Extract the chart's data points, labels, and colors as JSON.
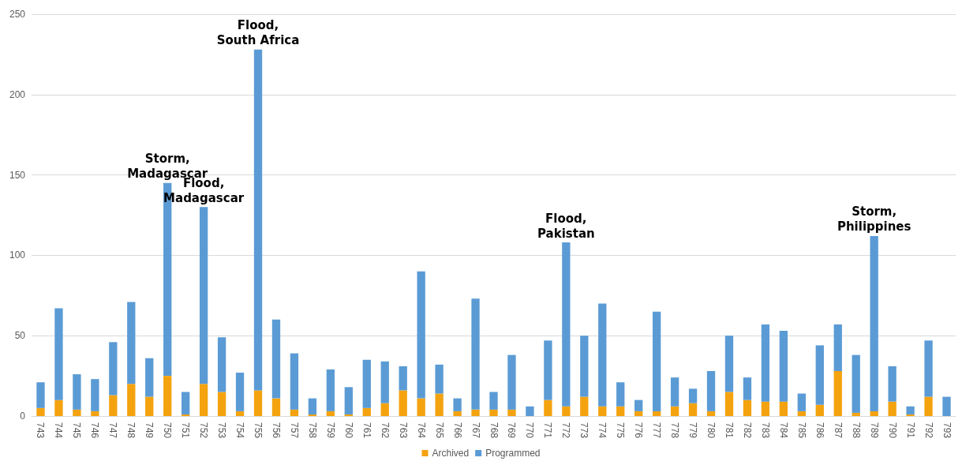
{
  "chart_data": {
    "type": "bar",
    "stacked": true,
    "categories": [
      "743",
      "744",
      "745",
      "746",
      "747",
      "748",
      "749",
      "750",
      "751",
      "752",
      "753",
      "754",
      "755",
      "756",
      "757",
      "758",
      "759",
      "760",
      "761",
      "762",
      "763",
      "764",
      "765",
      "766",
      "767",
      "768",
      "769",
      "770",
      "771",
      "772",
      "773",
      "774",
      "775",
      "776",
      "777",
      "778",
      "779",
      "780",
      "781",
      "782",
      "783",
      "784",
      "785",
      "786",
      "787",
      "788",
      "789",
      "790",
      "791",
      "792",
      "793"
    ],
    "series": [
      {
        "name": "Archived",
        "color": "#f4a30f",
        "values": [
          5,
          10,
          4,
          3,
          13,
          20,
          12,
          25,
          1,
          20,
          15,
          3,
          16,
          11,
          4,
          1,
          3,
          1,
          5,
          8,
          16,
          11,
          14,
          3,
          4,
          4,
          4,
          0,
          10,
          6,
          12,
          6,
          6,
          3,
          3,
          6,
          8,
          3,
          15,
          10,
          9,
          9,
          3,
          7,
          28,
          2,
          3,
          9,
          1,
          12,
          0
        ]
      },
      {
        "name": "Programmed",
        "color": "#5b9bd5",
        "values": [
          16,
          57,
          22,
          20,
          33,
          51,
          24,
          120,
          14,
          110,
          34,
          24,
          212,
          49,
          35,
          10,
          26,
          17,
          30,
          26,
          15,
          79,
          18,
          8,
          69,
          11,
          34,
          6,
          37,
          102,
          38,
          64,
          15,
          7,
          62,
          18,
          9,
          25,
          35,
          14,
          48,
          44,
          11,
          37,
          29,
          36,
          109,
          22,
          5,
          35,
          12
        ]
      }
    ],
    "ylim": [
      0,
      250
    ],
    "yticks": [
      0,
      50,
      100,
      150,
      200,
      250
    ],
    "grid": "y",
    "legend": "bottom",
    "annotations": [
      {
        "text": "Storm,\nMadagascar",
        "x": "750",
        "y": 145
      },
      {
        "text": "Flood,\nMadagascar",
        "x": "752",
        "y": 130
      },
      {
        "text": "Flood,\nSouth Africa",
        "x": "755",
        "y": 228
      },
      {
        "text": "Flood,\nPakistan",
        "x": "772",
        "y": 108
      },
      {
        "text": "Storm,\nPhilippines",
        "x": "789",
        "y": 112
      }
    ]
  }
}
